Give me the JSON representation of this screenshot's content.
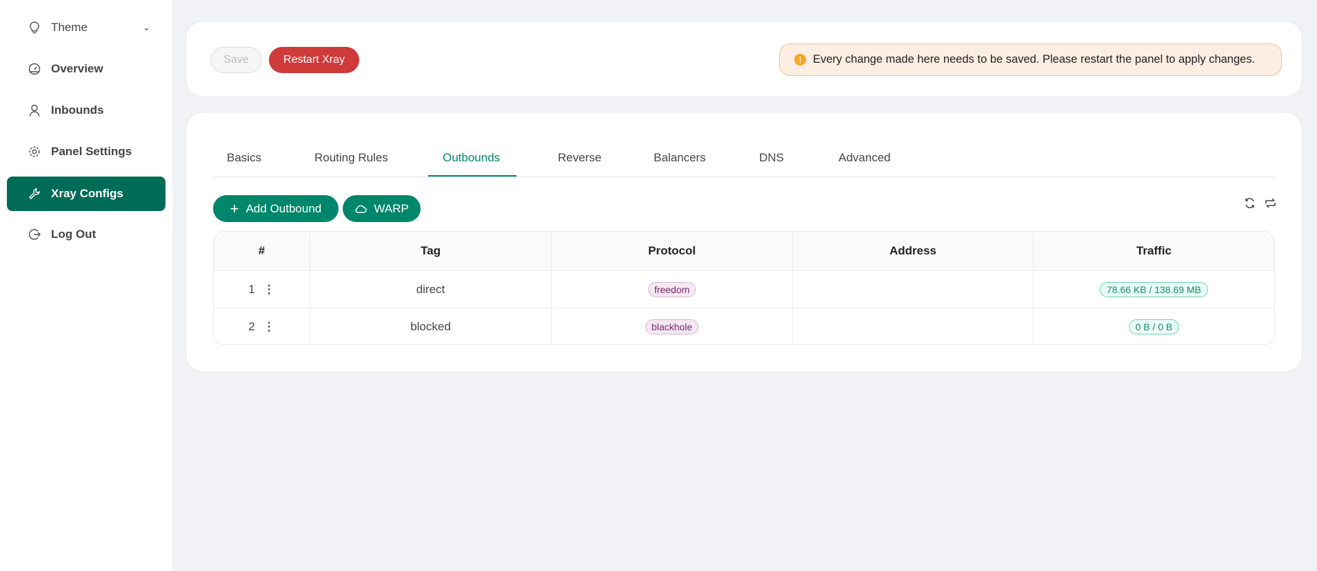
{
  "sidebar": {
    "items": [
      {
        "label": "Theme",
        "icon": "bulb-icon"
      },
      {
        "label": "Overview",
        "icon": "dashboard-icon"
      },
      {
        "label": "Inbounds",
        "icon": "user-icon"
      },
      {
        "label": "Panel Settings",
        "icon": "gear-icon"
      },
      {
        "label": "Xray Configs",
        "icon": "wrench-icon",
        "active": true
      },
      {
        "label": "Log Out",
        "icon": "logout-icon"
      }
    ]
  },
  "toolbar": {
    "save_label": "Save",
    "restart_label": "Restart Xray",
    "alert": "Every change made here needs to be saved. Please restart the panel to apply changes."
  },
  "tabs": [
    "Basics",
    "Routing Rules",
    "Outbounds",
    "Reverse",
    "Balancers",
    "DNS",
    "Advanced"
  ],
  "active_tab": "Outbounds",
  "actions": {
    "add_outbound": "Add Outbound",
    "warp": "WARP"
  },
  "table": {
    "headers": [
      "#",
      "Tag",
      "Protocol",
      "Address",
      "Traffic"
    ],
    "rows": [
      {
        "index": "1",
        "tag": "direct",
        "protocol": "freedom",
        "address": "",
        "traffic": "78.66 KB / 138.69 MB"
      },
      {
        "index": "2",
        "tag": "blocked",
        "protocol": "blackhole",
        "address": "",
        "traffic": "0 B / 0 B"
      }
    ]
  },
  "colors": {
    "primary": "#006b57",
    "accent": "#00876b",
    "danger": "#cf3a3a",
    "warning": "#f5a623"
  }
}
